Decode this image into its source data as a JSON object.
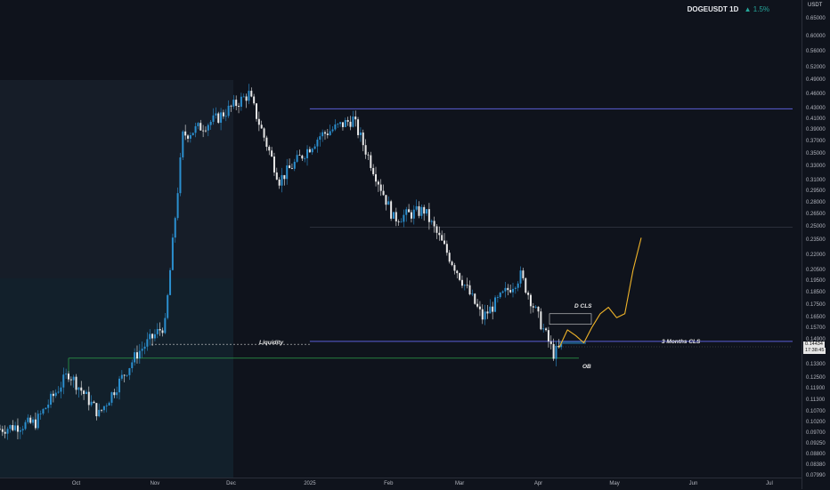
{
  "header": {
    "symbol": "DOGEUSDT 1D",
    "change_arrow": "▲",
    "change": "1.5%",
    "change_color": "#26a69a"
  },
  "price_axis": {
    "currency": "USDT",
    "labels": [
      "0.65000",
      "0.60000",
      "0.56000",
      "0.52000",
      "0.49000",
      "0.46000",
      "0.43000",
      "0.41000",
      "0.39000",
      "0.37000",
      "0.35000",
      "0.33000",
      "0.31000",
      "0.29500",
      "0.28000",
      "0.26500",
      "0.25000",
      "0.23500",
      "0.22000",
      "0.20500",
      "0.19500",
      "0.18500",
      "0.17500",
      "0.16500",
      "0.15700",
      "0.14900",
      "0.13300",
      "0.12500",
      "0.11900",
      "0.11300",
      "0.10700",
      "0.10200",
      "0.09700",
      "0.09250",
      "0.08800",
      "0.08380",
      "0.07990"
    ],
    "current_price": "0.14434",
    "countdown": "17:38:45"
  },
  "time_axis": {
    "labels": [
      "Oct",
      "Nov",
      "Dec",
      "2025",
      "Feb",
      "Mar",
      "Apr",
      "May",
      "Jun",
      "Jul"
    ]
  },
  "annotations": {
    "liquidity": "Liquidity",
    "d_cls": "D CLS",
    "three_months_cls": "3 Months CLS",
    "ob": "OB"
  },
  "colors": {
    "up": "#2b8fcf",
    "down": "#e8e8e8",
    "hline": "#5b5fd6",
    "ob_line": "#2e9e4a",
    "projection": "#f0b429",
    "background": "#0f131c"
  },
  "chart_data": {
    "type": "candlestick",
    "symbol": "DOGEUSDT",
    "interval": "1D",
    "y_scale": "log",
    "ylim": [
      0.0799,
      0.65
    ],
    "x_range": [
      "2024-09-01",
      "2025-07-05"
    ],
    "closes_approx": [
      {
        "date": "2024-09-01",
        "close": 0.099
      },
      {
        "date": "2024-09-15",
        "close": 0.102
      },
      {
        "date": "2024-09-28",
        "close": 0.128
      },
      {
        "date": "2024-10-10",
        "close": 0.106
      },
      {
        "date": "2024-10-25",
        "close": 0.14
      },
      {
        "date": "2024-11-05",
        "close": 0.16
      },
      {
        "date": "2024-11-12",
        "close": 0.38
      },
      {
        "date": "2024-11-25",
        "close": 0.41
      },
      {
        "date": "2024-12-08",
        "close": 0.46
      },
      {
        "date": "2024-12-20",
        "close": 0.31
      },
      {
        "date": "2025-01-05",
        "close": 0.38
      },
      {
        "date": "2025-01-18",
        "close": 0.41
      },
      {
        "date": "2025-02-03",
        "close": 0.26
      },
      {
        "date": "2025-02-15",
        "close": 0.27
      },
      {
        "date": "2025-03-01",
        "close": 0.2
      },
      {
        "date": "2025-03-10",
        "close": 0.165
      },
      {
        "date": "2025-03-25",
        "close": 0.2
      },
      {
        "date": "2025-04-07",
        "close": 0.14
      },
      {
        "date": "2025-04-10",
        "close": 0.144
      }
    ],
    "levels": {
      "range_high": 0.43,
      "mid_level": 0.25,
      "three_months_cls": 0.148,
      "liquidity": 0.146,
      "ob": 0.137,
      "d_cls": 0.168
    },
    "projection_path": [
      0.144,
      0.156,
      0.152,
      0.147,
      0.158,
      0.168,
      0.173,
      0.165,
      0.168,
      0.205,
      0.238
    ],
    "grid": false
  }
}
